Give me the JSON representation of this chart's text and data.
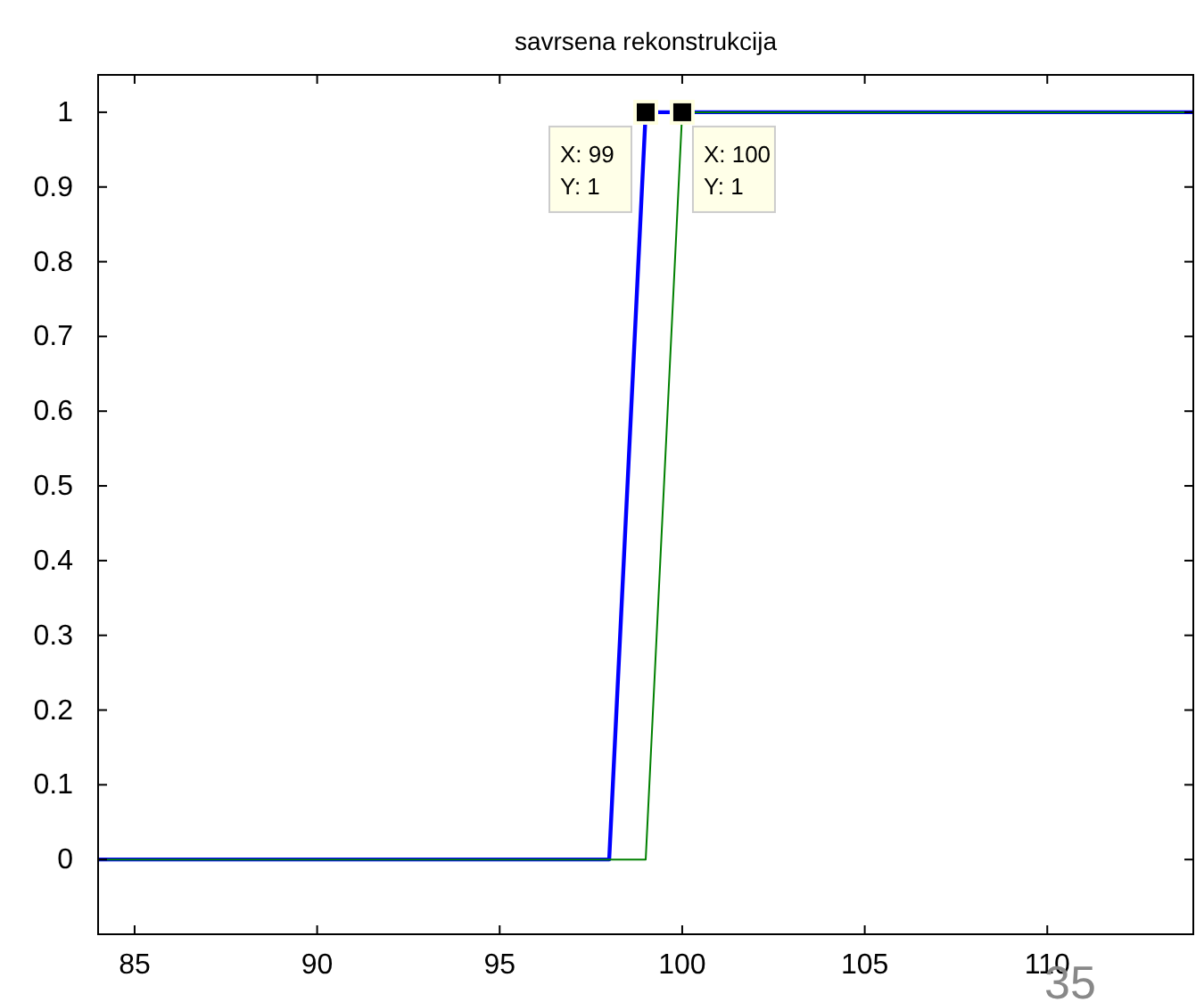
{
  "chart_data": {
    "type": "line",
    "title": "savrsena rekonstrukcija",
    "series": [
      {
        "color": "#0000ff",
        "x": [
          84,
          98,
          99,
          114
        ],
        "values": [
          0,
          0,
          1,
          1
        ]
      },
      {
        "color": "#008000",
        "x": [
          84,
          99,
          100,
          114
        ],
        "values": [
          0,
          0,
          1,
          1
        ]
      }
    ],
    "xlim": [
      84,
      114
    ],
    "xticks": [
      85,
      90,
      95,
      100,
      105,
      110
    ],
    "ylim": [
      -0.1,
      1.05
    ],
    "yticks": [
      0,
      0.1,
      0.2,
      0.3,
      0.4,
      0.5,
      0.6,
      0.7,
      0.8,
      0.9,
      1
    ],
    "grid": false,
    "marker": "none",
    "line_style": "solid",
    "annotations": [
      {
        "text": "X: 99\nY: 1",
        "x": 99,
        "y": 1
      },
      {
        "text": "X: 100\nY: 1",
        "x": 100,
        "y": 1
      },
      "35"
    ]
  }
}
